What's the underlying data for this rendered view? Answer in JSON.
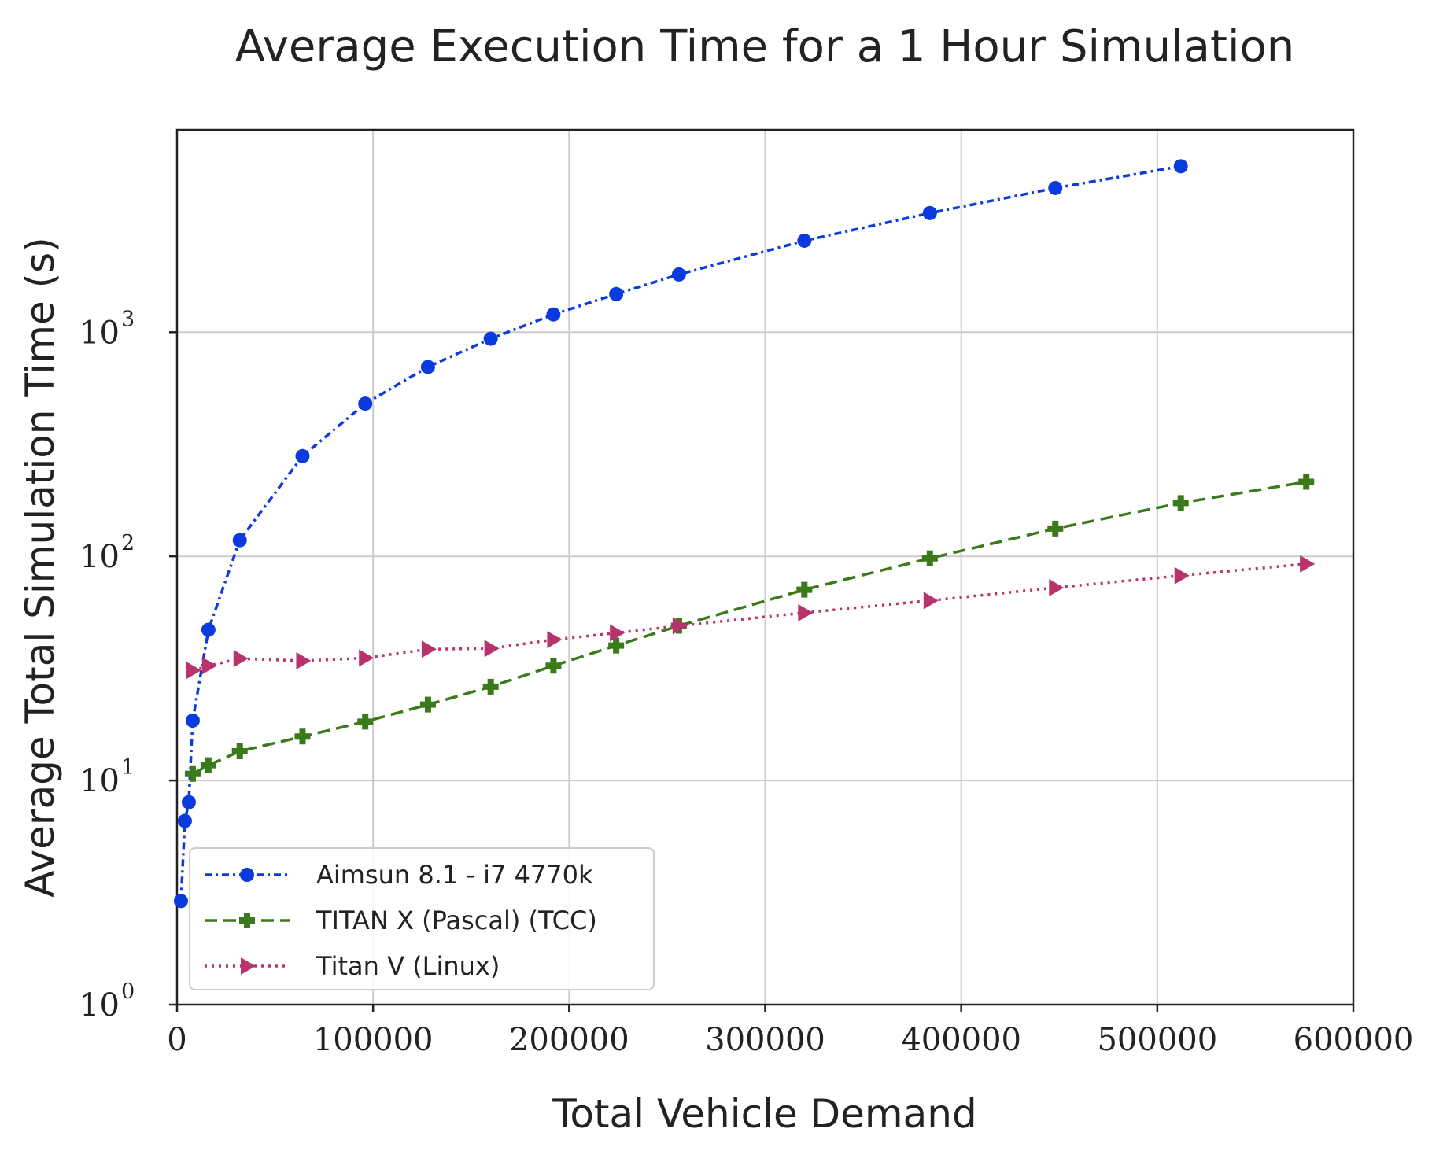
{
  "chart_data": {
    "type": "line",
    "title": "Average Execution Time for a 1 Hour Simulation",
    "xlabel": "Total Vehicle Demand",
    "ylabel": "Average Total Simulation Time (s)",
    "xlim": [
      0,
      600000
    ],
    "ylim": [
      1,
      8000
    ],
    "yscale": "log",
    "grid": true,
    "legend_position": "lower-left",
    "x_ticks": [
      {
        "value": 0,
        "label": "0"
      },
      {
        "value": 100000,
        "label": "100000"
      },
      {
        "value": 200000,
        "label": "200000"
      },
      {
        "value": 300000,
        "label": "300000"
      },
      {
        "value": 400000,
        "label": "400000"
      },
      {
        "value": 500000,
        "label": "500000"
      },
      {
        "value": 600000,
        "label": "600000"
      }
    ],
    "y_ticks": [
      {
        "value": 1,
        "base": "10",
        "exp": "0"
      },
      {
        "value": 10,
        "base": "10",
        "exp": "1"
      },
      {
        "value": 100,
        "base": "10",
        "exp": "2"
      },
      {
        "value": 1000,
        "base": "10",
        "exp": "3"
      }
    ],
    "series": [
      {
        "name": "Aimsun 8.1 - i7 4770k",
        "color": "#0b3bde",
        "dash": "dashdot",
        "marker": "circle",
        "points": [
          [
            2000,
            2.9
          ],
          [
            4000,
            6.6
          ],
          [
            6000,
            8.0
          ],
          [
            8000,
            18.5
          ],
          [
            16000,
            47
          ],
          [
            32000,
            118
          ],
          [
            64000,
            280
          ],
          [
            96000,
            480
          ],
          [
            128000,
            700
          ],
          [
            160000,
            935
          ],
          [
            192000,
            1200
          ],
          [
            224000,
            1480
          ],
          [
            256000,
            1810
          ],
          [
            320000,
            2560
          ],
          [
            384000,
            3400
          ],
          [
            448000,
            4400
          ],
          [
            512000,
            5500
          ]
        ]
      },
      {
        "name": "TITAN X (Pascal) (TCC)",
        "color": "#3a7a1a",
        "dash": "dashed",
        "marker": "plus",
        "points": [
          [
            8000,
            10.7
          ],
          [
            16000,
            11.7
          ],
          [
            32000,
            13.5
          ],
          [
            64000,
            15.7
          ],
          [
            96000,
            18.3
          ],
          [
            128000,
            21.8
          ],
          [
            160000,
            26.2
          ],
          [
            192000,
            32.5
          ],
          [
            224000,
            40
          ],
          [
            256000,
            49
          ],
          [
            320000,
            71
          ],
          [
            384000,
            98
          ],
          [
            448000,
            133
          ],
          [
            512000,
            173
          ],
          [
            576000,
            215
          ]
        ]
      },
      {
        "name": "Titan V (Linux)",
        "color": "#b8326b",
        "dash": "dotted",
        "marker": "triangle-right",
        "points": [
          [
            8000,
            31
          ],
          [
            16000,
            32.5
          ],
          [
            32000,
            35
          ],
          [
            64000,
            34.2
          ],
          [
            96000,
            35.2
          ],
          [
            128000,
            38.5
          ],
          [
            160000,
            38.8
          ],
          [
            192000,
            42.5
          ],
          [
            224000,
            45.5
          ],
          [
            256000,
            49
          ],
          [
            320000,
            56
          ],
          [
            384000,
            63.5
          ],
          [
            448000,
            72.5
          ],
          [
            512000,
            82
          ],
          [
            576000,
            92.5
          ]
        ]
      }
    ]
  }
}
